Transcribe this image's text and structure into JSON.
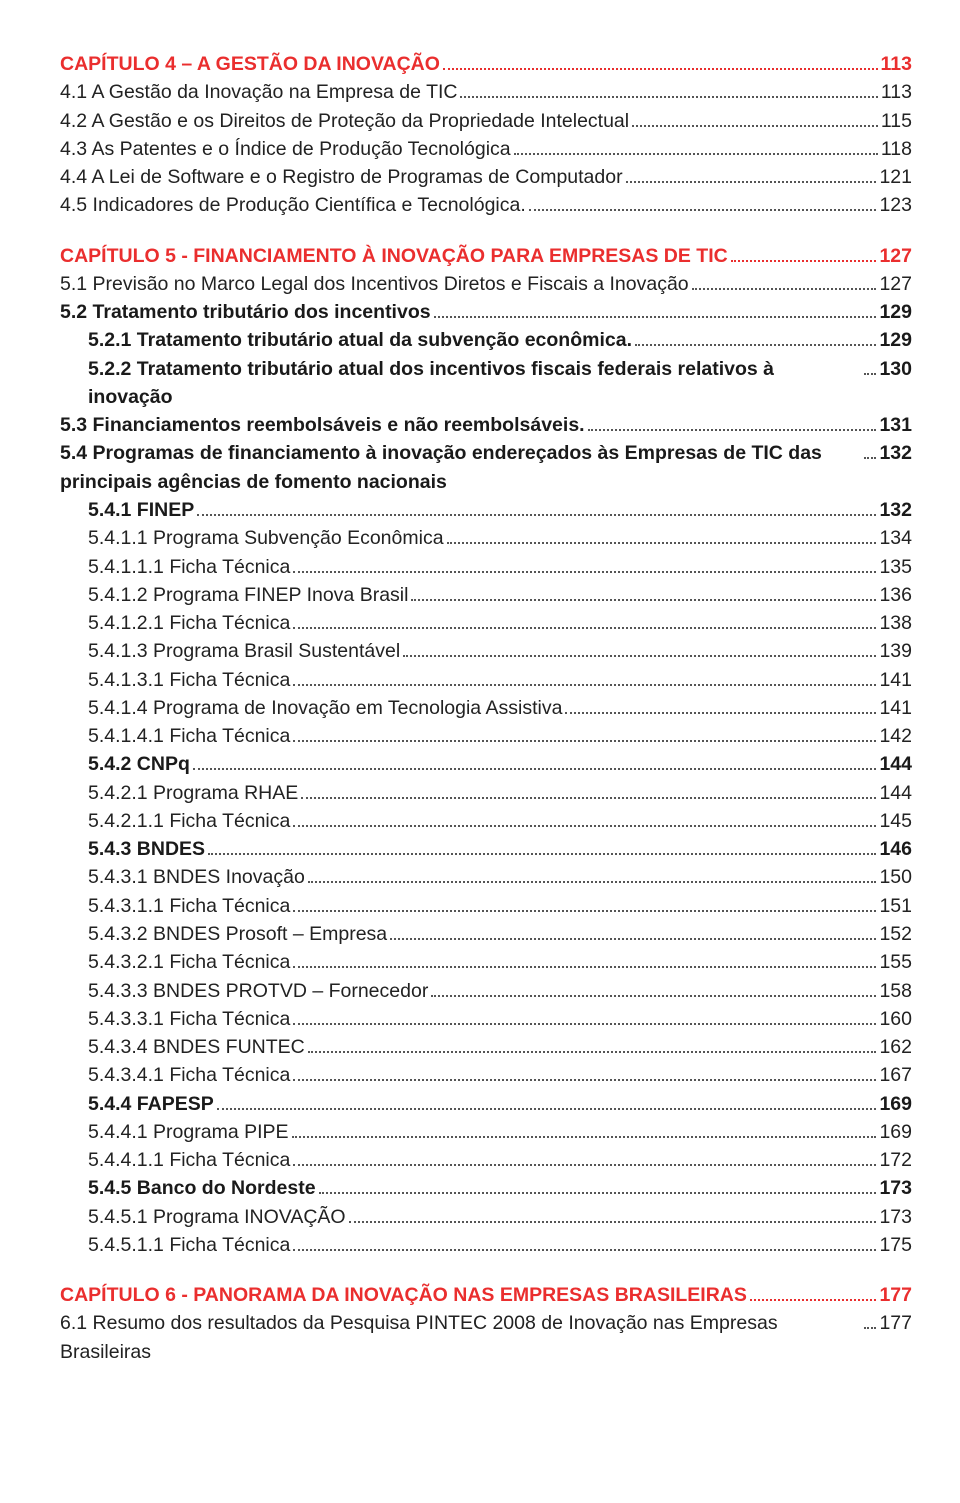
{
  "entries": [
    {
      "cls": "chapter",
      "indent": 0,
      "label": "CAPÍTULO 4 – A GESTÃO DA INOVAÇÃO",
      "page": "113"
    },
    {
      "cls": "",
      "indent": 0,
      "label": "4.1 A Gestão da Inovação na Empresa de TIC",
      "page": "113"
    },
    {
      "cls": "",
      "indent": 0,
      "label": "4.2 A Gestão e os Direitos de Proteção da Propriedade Intelectual",
      "page": "115"
    },
    {
      "cls": "",
      "indent": 0,
      "label": "4.3 As Patentes e o Índice de Produção Tecnológica",
      "page": "118"
    },
    {
      "cls": "",
      "indent": 0,
      "label": "4.4 A Lei de Software e o Registro de Programas de Computador",
      "page": "121"
    },
    {
      "cls": "",
      "indent": 0,
      "label": "4.5 Indicadores de Produção Científica e Tecnológica.",
      "page": "123"
    },
    {
      "cls": "gap"
    },
    {
      "cls": "chapter",
      "indent": 0,
      "label": "CAPÍTULO 5 - FINANCIAMENTO À INOVAÇÃO PARA EMPRESAS DE TIC",
      "page": "127"
    },
    {
      "cls": "",
      "indent": 0,
      "label": "5.1 Previsão no Marco Legal dos Incentivos Diretos e Fiscais a Inovação",
      "page": "127"
    },
    {
      "cls": "bold",
      "indent": 0,
      "label": "5.2 Tratamento tributário dos incentivos",
      "page": "129"
    },
    {
      "cls": "bold",
      "indent": 1,
      "label": "5.2.1 Tratamento tributário atual da subvenção econômica.",
      "page": "129"
    },
    {
      "cls": "bold",
      "indent": 1,
      "label": "5.2.2 Tratamento tributário atual dos incentivos fiscais federais relativos à inovação",
      "page": "130"
    },
    {
      "cls": "bold",
      "indent": 0,
      "label": "5.3 Financiamentos reembolsáveis e não reembolsáveis.",
      "page": "131"
    },
    {
      "cls": "bold",
      "indent": 0,
      "label": "5.4 Programas de financiamento à inovação endereçados às Empresas de TIC das principais agências de fomento nacionais",
      "page": "132"
    },
    {
      "cls": "bold",
      "indent": 1,
      "label": "5.4.1 FINEP",
      "page": "132"
    },
    {
      "cls": "",
      "indent": 1,
      "label": "5.4.1.1 Programa Subvenção Econômica",
      "page": "134"
    },
    {
      "cls": "",
      "indent": 1,
      "label": "5.4.1.1.1 Ficha Técnica",
      "page": "135"
    },
    {
      "cls": "",
      "indent": 1,
      "label": "5.4.1.2 Programa FINEP Inova Brasil",
      "page": "136"
    },
    {
      "cls": "",
      "indent": 1,
      "label": "5.4.1.2.1 Ficha Técnica",
      "page": "138"
    },
    {
      "cls": "",
      "indent": 1,
      "label": "5.4.1.3 Programa Brasil Sustentável",
      "page": "139"
    },
    {
      "cls": "",
      "indent": 1,
      "label": "5.4.1.3.1 Ficha Técnica",
      "page": "141"
    },
    {
      "cls": "",
      "indent": 1,
      "label": "5.4.1.4 Programa de Inovação em Tecnologia Assistiva",
      "page": "141"
    },
    {
      "cls": "",
      "indent": 1,
      "label": "5.4.1.4.1 Ficha Técnica",
      "page": "142"
    },
    {
      "cls": "bold",
      "indent": 1,
      "label": "5.4.2 CNPq",
      "page": "144"
    },
    {
      "cls": "",
      "indent": 1,
      "label": "5.4.2.1 Programa RHAE",
      "page": "144"
    },
    {
      "cls": "",
      "indent": 1,
      "label": "5.4.2.1.1 Ficha Técnica",
      "page": "145"
    },
    {
      "cls": "bold",
      "indent": 1,
      "label": "5.4.3 BNDES",
      "page": "146"
    },
    {
      "cls": "",
      "indent": 1,
      "label": "5.4.3.1 BNDES Inovação",
      "page": "150"
    },
    {
      "cls": "",
      "indent": 1,
      "label": "5.4.3.1.1 Ficha Técnica",
      "page": "151"
    },
    {
      "cls": "",
      "indent": 1,
      "label": "5.4.3.2 BNDES Prosoft – Empresa",
      "page": "152"
    },
    {
      "cls": "",
      "indent": 1,
      "label": "5.4.3.2.1 Ficha Técnica",
      "page": "155"
    },
    {
      "cls": "",
      "indent": 1,
      "label": "5.4.3.3 BNDES PROTVD – Fornecedor",
      "page": "158"
    },
    {
      "cls": "",
      "indent": 1,
      "label": "5.4.3.3.1 Ficha Técnica",
      "page": "160"
    },
    {
      "cls": "",
      "indent": 1,
      "label": "5.4.3.4 BNDES FUNTEC",
      "page": "162"
    },
    {
      "cls": "",
      "indent": 1,
      "label": "5.4.3.4.1 Ficha Técnica",
      "page": "167"
    },
    {
      "cls": "bold",
      "indent": 1,
      "label": "5.4.4 FAPESP",
      "page": "169"
    },
    {
      "cls": "",
      "indent": 1,
      "label": "5.4.4.1 Programa PIPE",
      "page": "169"
    },
    {
      "cls": "",
      "indent": 1,
      "label": "5.4.4.1.1 Ficha Técnica",
      "page": "172"
    },
    {
      "cls": "bold",
      "indent": 1,
      "label": "5.4.5 Banco do Nordeste",
      "page": "173"
    },
    {
      "cls": "",
      "indent": 1,
      "label": "5.4.5.1 Programa INOVAÇÃO",
      "page": "173"
    },
    {
      "cls": "",
      "indent": 1,
      "label": "5.4.5.1.1 Ficha Técnica",
      "page": "175"
    },
    {
      "cls": "gap"
    },
    {
      "cls": "chapter",
      "indent": 0,
      "label": "CAPÍTULO 6 - PANORAMA DA INOVAÇÃO NAS EMPRESAS BRASILEIRAS",
      "page": "177"
    },
    {
      "cls": "",
      "indent": 0,
      "label": "6.1 Resumo dos resultados da Pesquisa PINTEC 2008 de Inovação nas Empresas Brasileiras",
      "page": "177"
    }
  ]
}
